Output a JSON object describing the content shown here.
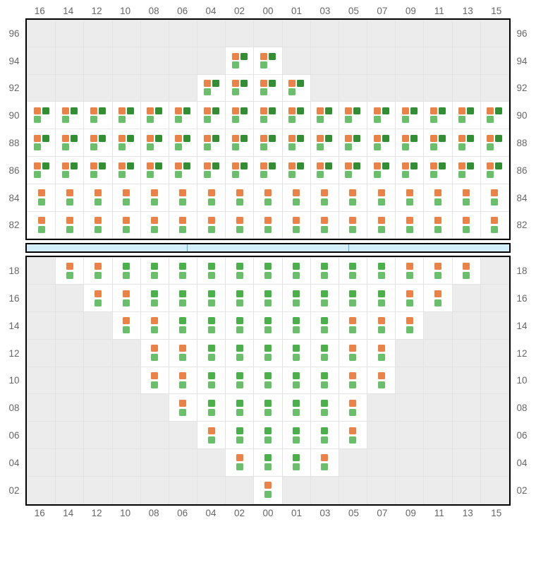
{
  "columns": [
    "16",
    "14",
    "12",
    "10",
    "08",
    "06",
    "04",
    "02",
    "00",
    "01",
    "03",
    "05",
    "07",
    "09",
    "11",
    "13",
    "15"
  ],
  "colors": {
    "orange": "#eb8247",
    "darkgreen": "#318e32",
    "lightgreen": "#6ac06a",
    "green": "#4ab04a",
    "inactive_bg": "#ececec",
    "active_bg": "#ffffff",
    "gridline": "#e3e3e3",
    "frame": "#000000",
    "separator_fill": "#d2eefc",
    "separator_line": "#5aa8d8",
    "label_color": "#666666"
  },
  "layout": {
    "cell_height": 38.8,
    "row_label_width": 36,
    "marker_three_grid": [
      10,
      10
    ],
    "marker_two_grid": [
      10
    ],
    "marker_gap": 2,
    "font_size": 13.5,
    "separator_segments": 3
  },
  "top": {
    "rows": [
      "96",
      "94",
      "92",
      "90",
      "88",
      "86",
      "84",
      "82"
    ],
    "cells": [
      {
        "r": "96",
        "active": [],
        "marks": {}
      },
      {
        "r": "94",
        "active": [
          "02",
          "00"
        ],
        "marks": {
          "02": "A",
          "00": "A"
        }
      },
      {
        "r": "92",
        "active": [
          "04",
          "02",
          "00",
          "01"
        ],
        "marks": {
          "04": "A",
          "02": "A",
          "00": "A",
          "01": "A"
        }
      },
      {
        "r": "90",
        "active": [
          "16",
          "14",
          "12",
          "10",
          "08",
          "06",
          "04",
          "02",
          "00",
          "01",
          "03",
          "05",
          "07",
          "09",
          "11",
          "13",
          "15"
        ],
        "marks": {
          "16": "A",
          "14": "A",
          "12": "A",
          "10": "A",
          "08": "A",
          "06": "A",
          "04": "A",
          "02": "A",
          "00": "A",
          "01": "A",
          "03": "A",
          "05": "A",
          "07": "A",
          "09": "A",
          "11": "A",
          "13": "A",
          "15": "A"
        }
      },
      {
        "r": "88",
        "active": [
          "16",
          "14",
          "12",
          "10",
          "08",
          "06",
          "04",
          "02",
          "00",
          "01",
          "03",
          "05",
          "07",
          "09",
          "11",
          "13",
          "15"
        ],
        "marks": {
          "16": "A",
          "14": "A",
          "12": "A",
          "10": "A",
          "08": "A",
          "06": "A",
          "04": "A",
          "02": "A",
          "00": "A",
          "01": "A",
          "03": "A",
          "05": "A",
          "07": "A",
          "09": "A",
          "11": "A",
          "13": "A",
          "15": "A"
        }
      },
      {
        "r": "86",
        "active": [
          "16",
          "14",
          "12",
          "10",
          "08",
          "06",
          "04",
          "02",
          "00",
          "01",
          "03",
          "05",
          "07",
          "09",
          "11",
          "13",
          "15"
        ],
        "marks": {
          "16": "A",
          "14": "A",
          "12": "A",
          "10": "A",
          "08": "A",
          "06": "A",
          "04": "A",
          "02": "A",
          "00": "A",
          "01": "A",
          "03": "A",
          "05": "A",
          "07": "A",
          "09": "A",
          "11": "A",
          "13": "A",
          "15": "A"
        }
      },
      {
        "r": "84",
        "active": [
          "16",
          "14",
          "12",
          "10",
          "08",
          "06",
          "04",
          "02",
          "00",
          "01",
          "03",
          "05",
          "07",
          "09",
          "11",
          "13",
          "15"
        ],
        "marks": {
          "16": "B",
          "14": "B",
          "12": "B",
          "10": "B",
          "08": "B",
          "06": "B",
          "04": "B",
          "02": "B",
          "00": "B",
          "01": "B",
          "03": "B",
          "05": "B",
          "07": "B",
          "09": "B",
          "11": "B",
          "13": "B",
          "15": "B"
        }
      },
      {
        "r": "82",
        "active": [
          "16",
          "14",
          "12",
          "10",
          "08",
          "06",
          "04",
          "02",
          "00",
          "01",
          "03",
          "05",
          "07",
          "09",
          "11",
          "13",
          "15"
        ],
        "marks": {
          "16": "B",
          "14": "B",
          "12": "B",
          "10": "B",
          "08": "B",
          "06": "B",
          "04": "B",
          "02": "B",
          "00": "B",
          "01": "B",
          "03": "B",
          "05": "B",
          "07": "B",
          "09": "B",
          "11": "B",
          "13": "B",
          "15": "B"
        }
      }
    ]
  },
  "bottom": {
    "rows": [
      "18",
      "16",
      "14",
      "12",
      "10",
      "08",
      "06",
      "04",
      "02"
    ],
    "cells": [
      {
        "r": "18",
        "active": [
          "14",
          "12",
          "10",
          "08",
          "06",
          "04",
          "02",
          "00",
          "01",
          "03",
          "05",
          "07",
          "09",
          "11",
          "13"
        ],
        "marks": {
          "14": "B",
          "12": "B",
          "10": "G",
          "08": "G",
          "06": "G",
          "04": "G",
          "02": "G",
          "00": "G",
          "01": "G",
          "03": "G",
          "05": "G",
          "07": "G",
          "09": "B",
          "11": "B",
          "13": "B"
        }
      },
      {
        "r": "16",
        "active": [
          "12",
          "10",
          "08",
          "06",
          "04",
          "02",
          "00",
          "01",
          "03",
          "05",
          "07",
          "09",
          "11"
        ],
        "marks": {
          "12": "B",
          "10": "B",
          "08": "G",
          "06": "G",
          "04": "G",
          "02": "G",
          "00": "G",
          "01": "G",
          "03": "G",
          "05": "G",
          "07": "G",
          "09": "B",
          "11": "B"
        }
      },
      {
        "r": "14",
        "active": [
          "10",
          "08",
          "06",
          "04",
          "02",
          "00",
          "01",
          "03",
          "05",
          "07",
          "09"
        ],
        "marks": {
          "10": "B",
          "08": "B",
          "06": "G",
          "04": "G",
          "02": "G",
          "00": "G",
          "01": "G",
          "03": "G",
          "05": "B",
          "07": "B",
          "09": "B"
        }
      },
      {
        "r": "12",
        "active": [
          "08",
          "06",
          "04",
          "02",
          "00",
          "01",
          "03",
          "05",
          "07"
        ],
        "marks": {
          "08": "B",
          "06": "B",
          "04": "G",
          "02": "G",
          "00": "G",
          "01": "G",
          "03": "G",
          "05": "B",
          "07": "B"
        }
      },
      {
        "r": "10",
        "active": [
          "08",
          "06",
          "04",
          "02",
          "00",
          "01",
          "03",
          "05",
          "07"
        ],
        "marks": {
          "08": "B",
          "06": "B",
          "04": "G",
          "02": "G",
          "00": "G",
          "01": "G",
          "03": "G",
          "05": "B",
          "07": "B"
        }
      },
      {
        "r": "08",
        "active": [
          "06",
          "04",
          "02",
          "00",
          "01",
          "03",
          "05"
        ],
        "marks": {
          "06": "B",
          "04": "G",
          "02": "G",
          "00": "G",
          "01": "G",
          "03": "G",
          "05": "B"
        }
      },
      {
        "r": "06",
        "active": [
          "04",
          "02",
          "00",
          "01",
          "03",
          "05"
        ],
        "marks": {
          "04": "B",
          "02": "G",
          "00": "G",
          "01": "G",
          "03": "G",
          "05": "B"
        }
      },
      {
        "r": "04",
        "active": [
          "02",
          "00",
          "01",
          "03"
        ],
        "marks": {
          "02": "B",
          "00": "G",
          "01": "G",
          "03": "B"
        }
      },
      {
        "r": "02",
        "active": [
          "00"
        ],
        "marks": {
          "00": "B"
        }
      }
    ]
  },
  "mark_styles": {
    "A": {
      "layout": "three",
      "squares": [
        "orange",
        "dgreen",
        "lgreen"
      ]
    },
    "B": {
      "layout": "two",
      "squares": [
        "orange",
        "lgreen"
      ]
    },
    "G": {
      "layout": "two",
      "squares": [
        "green",
        "lgreen"
      ]
    }
  }
}
